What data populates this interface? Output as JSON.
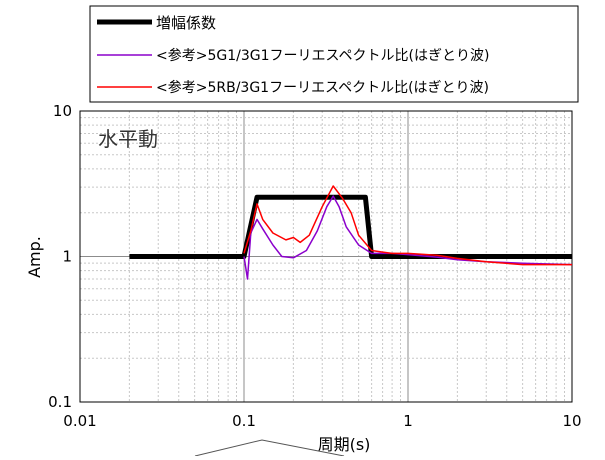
{
  "chart_data": {
    "type": "line",
    "x_scale": "log",
    "y_scale": "log",
    "xlim": [
      0.01,
      10
    ],
    "ylim": [
      0.1,
      10
    ],
    "x_ticks": [
      0.01,
      0.1,
      1,
      10
    ],
    "x_tick_labels": [
      "0.01",
      "0.1",
      "1",
      "10"
    ],
    "y_ticks": [
      0.1,
      1,
      10
    ],
    "y_tick_labels": [
      "0.1",
      "1",
      "10"
    ],
    "xlabel": "周期(s)",
    "ylabel": "Amp.",
    "annotation": "水平動",
    "grid": true,
    "legend_placement": "top",
    "series": [
      {
        "name": "増幅係数",
        "color": "#000000",
        "points": [
          [
            0.02,
            1.0
          ],
          [
            0.1,
            1.0
          ],
          [
            0.12,
            2.55
          ],
          [
            0.55,
            2.55
          ],
          [
            0.6,
            1.0
          ],
          [
            10,
            1.0
          ]
        ]
      },
      {
        "name": "<参考>5G1/3G1フーリエスペクトル比(はぎとり波)",
        "color": "#8b00cc",
        "points": [
          [
            0.1,
            1.0
          ],
          [
            0.105,
            0.7
          ],
          [
            0.11,
            1.45
          ],
          [
            0.12,
            1.8
          ],
          [
            0.13,
            1.55
          ],
          [
            0.15,
            1.2
          ],
          [
            0.17,
            1.0
          ],
          [
            0.2,
            0.98
          ],
          [
            0.24,
            1.1
          ],
          [
            0.28,
            1.5
          ],
          [
            0.32,
            2.2
          ],
          [
            0.35,
            2.6
          ],
          [
            0.38,
            2.2
          ],
          [
            0.42,
            1.6
          ],
          [
            0.5,
            1.2
          ],
          [
            0.6,
            1.05
          ],
          [
            0.8,
            1.05
          ],
          [
            1.0,
            1.03
          ],
          [
            1.5,
            0.99
          ],
          [
            2.0,
            0.95
          ],
          [
            3.0,
            0.92
          ],
          [
            5.0,
            0.9
          ],
          [
            10.0,
            0.88
          ]
        ]
      },
      {
        "name": "<参考>5RB/3G1フーリエスペクトル比(はぎとり波)",
        "color": "#ff0000",
        "points": [
          [
            0.1,
            1.05
          ],
          [
            0.11,
            1.5
          ],
          [
            0.12,
            2.3
          ],
          [
            0.13,
            1.8
          ],
          [
            0.15,
            1.45
          ],
          [
            0.18,
            1.3
          ],
          [
            0.2,
            1.35
          ],
          [
            0.22,
            1.25
          ],
          [
            0.25,
            1.4
          ],
          [
            0.3,
            2.2
          ],
          [
            0.35,
            3.05
          ],
          [
            0.4,
            2.5
          ],
          [
            0.45,
            2.0
          ],
          [
            0.5,
            1.4
          ],
          [
            0.6,
            1.1
          ],
          [
            0.8,
            1.05
          ],
          [
            1.0,
            1.05
          ],
          [
            1.5,
            1.02
          ],
          [
            2.0,
            0.97
          ],
          [
            3.0,
            0.92
          ],
          [
            5.0,
            0.88
          ],
          [
            10.0,
            0.88
          ]
        ]
      }
    ]
  }
}
